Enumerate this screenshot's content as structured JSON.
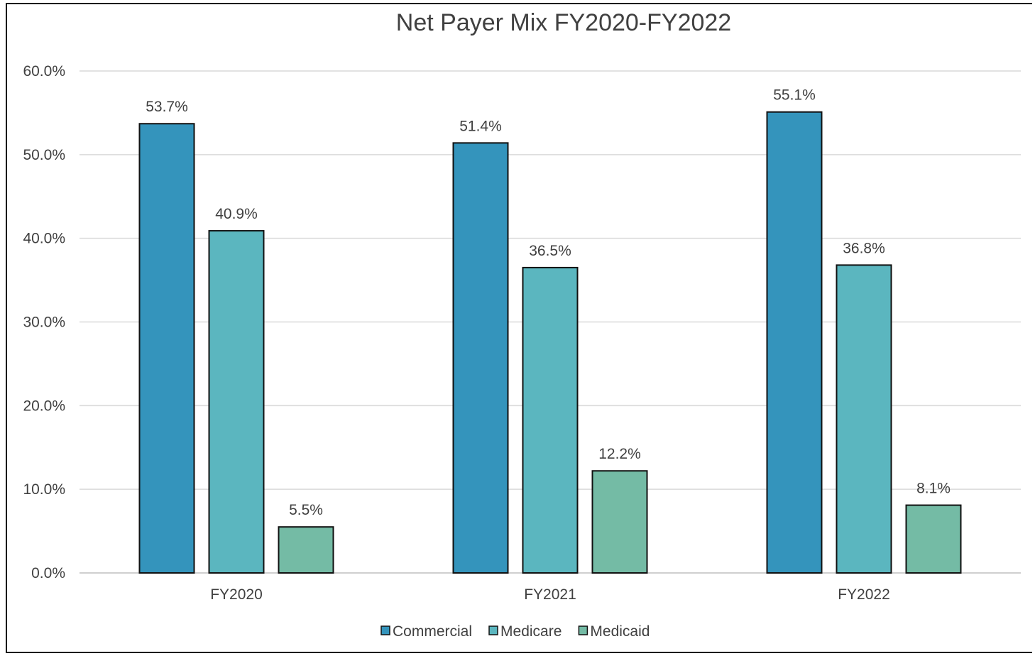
{
  "chart_data": {
    "type": "bar",
    "title": "Net Payer Mix FY2020-FY2022",
    "categories": [
      "FY2020",
      "FY2021",
      "FY2022"
    ],
    "series": [
      {
        "name": "Commercial",
        "values": [
          53.7,
          51.4,
          55.1
        ],
        "labels": [
          "53.7%",
          "51.4%",
          "55.1%"
        ],
        "color": "#3494bc"
      },
      {
        "name": "Medicare",
        "values": [
          40.9,
          36.5,
          36.8
        ],
        "labels": [
          "40.9%",
          "36.5%",
          "36.8%"
        ],
        "color": "#5bb6bf"
      },
      {
        "name": "Medicaid",
        "values": [
          5.5,
          12.2,
          8.1
        ],
        "labels": [
          "5.5%",
          "12.2%",
          "8.1%"
        ],
        "color": "#74bba5"
      }
    ],
    "ylim": [
      0,
      60
    ],
    "yticks": [
      0,
      10,
      20,
      30,
      40,
      50,
      60
    ],
    "ytick_labels": [
      "0.0%",
      "10.0%",
      "20.0%",
      "30.0%",
      "40.0%",
      "50.0%",
      "60.0%"
    ],
    "grid": true,
    "legend": "bottom-center",
    "xlabel": "",
    "ylabel": ""
  }
}
